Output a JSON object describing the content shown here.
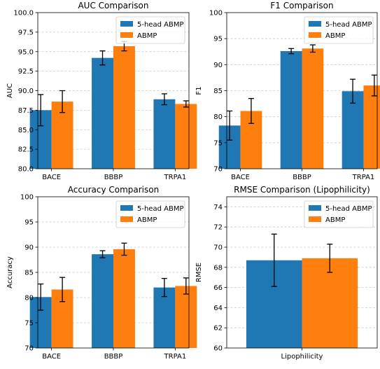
{
  "legend": [
    "5-head ABMP",
    "ABMP"
  ],
  "colors": {
    "series_1": "#1f77b4",
    "series_2": "#ff7f0e",
    "error_bar": "#000000",
    "grid": "#b0b0b0"
  },
  "chart_data": [
    {
      "type": "bar",
      "title": "AUC Comparison",
      "xlabel": "",
      "ylabel": "AUC",
      "categories": [
        "BACE",
        "BBBP",
        "TRPA1"
      ],
      "ylim": [
        80.0,
        100.0
      ],
      "yticks": [
        "80.0",
        "82.5",
        "85.0",
        "87.5",
        "90.0",
        "92.5",
        "95.0",
        "97.5",
        "100.0"
      ],
      "grid": "y-dashed",
      "legend_position": "top-right",
      "series": [
        {
          "name": "5-head ABMP",
          "values": [
            87.5,
            94.2,
            88.9
          ],
          "errors": [
            2.0,
            0.9,
            0.7
          ]
        },
        {
          "name": "ABMP",
          "values": [
            88.6,
            95.7,
            88.3
          ],
          "errors": [
            1.4,
            0.6,
            0.4
          ]
        }
      ]
    },
    {
      "type": "bar",
      "title": "F1 Comparison",
      "xlabel": "",
      "ylabel": "F1",
      "categories": [
        "BACE",
        "BBBP",
        "TRPA1"
      ],
      "ylim": [
        70,
        100
      ],
      "yticks": [
        "70",
        "75",
        "80",
        "85",
        "90",
        "95",
        "100"
      ],
      "grid": "y-dashed",
      "legend_position": "top-right",
      "series": [
        {
          "name": "5-head ABMP",
          "values": [
            78.3,
            92.6,
            84.9
          ],
          "errors": [
            2.8,
            0.5,
            2.3
          ]
        },
        {
          "name": "ABMP",
          "values": [
            81.1,
            93.1,
            86.0
          ],
          "errors": [
            2.4,
            0.7,
            2.0
          ]
        }
      ]
    },
    {
      "type": "bar",
      "title": "Accuracy Comparison",
      "xlabel": "",
      "ylabel": "Accuracy",
      "categories": [
        "BACE",
        "BBBP",
        "TRPA1"
      ],
      "ylim": [
        70,
        100
      ],
      "yticks": [
        "70",
        "75",
        "80",
        "85",
        "90",
        "95",
        "100"
      ],
      "grid": "y-dashed",
      "legend_position": "top-right",
      "series": [
        {
          "name": "5-head ABMP",
          "values": [
            80.1,
            88.6,
            82.0
          ],
          "errors": [
            2.6,
            0.7,
            1.8
          ]
        },
        {
          "name": "ABMP",
          "values": [
            81.6,
            89.6,
            82.3
          ],
          "errors": [
            2.4,
            1.2,
            1.6
          ]
        }
      ]
    },
    {
      "type": "bar",
      "title": "RMSE Comparison (Lipophilicity)",
      "xlabel": "",
      "ylabel": "RMSE",
      "categories": [
        "Lipophilicity"
      ],
      "ylim": [
        60,
        75
      ],
      "yticks": [
        "60",
        "62",
        "64",
        "66",
        "68",
        "70",
        "72",
        "74"
      ],
      "grid": "y-dashed",
      "legend_position": "top-right",
      "series": [
        {
          "name": "5-head ABMP",
          "values": [
            68.7
          ],
          "errors": [
            2.6
          ]
        },
        {
          "name": "ABMP",
          "values": [
            68.9
          ],
          "errors": [
            1.4
          ]
        }
      ]
    }
  ]
}
